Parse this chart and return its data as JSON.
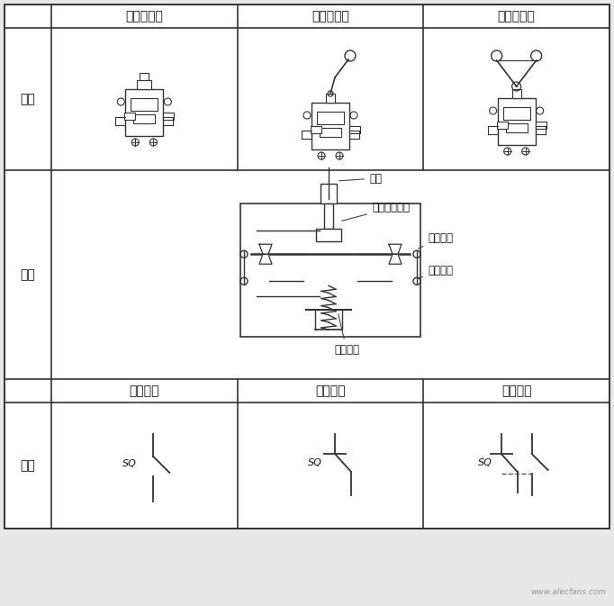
{
  "bg_color": "#e8e8e8",
  "table_bg": "#ffffff",
  "border_color": "#333333",
  "text_color": "#111111",
  "col_headers": [
    "直　动　式",
    "单轮旋转式",
    "双轮旋转式"
  ],
  "row_label_wai": "外形",
  "row_label_jie": "结构",
  "row_label_sym": "符号",
  "symbol_subheaders": [
    "常开触点",
    "常闭触点",
    "复合触点"
  ],
  "struct_labels": {
    "tuigan": "推杆",
    "wanxing": "弯形片状弹簧",
    "changkai": "常开触点",
    "changbi": "常闭触点",
    "huifu": "恢复弹簧"
  },
  "watermark": "www.alecfans.com",
  "font_size_header": 10,
  "font_size_label": 10,
  "font_size_struct": 8.5,
  "font_size_sq": 8
}
